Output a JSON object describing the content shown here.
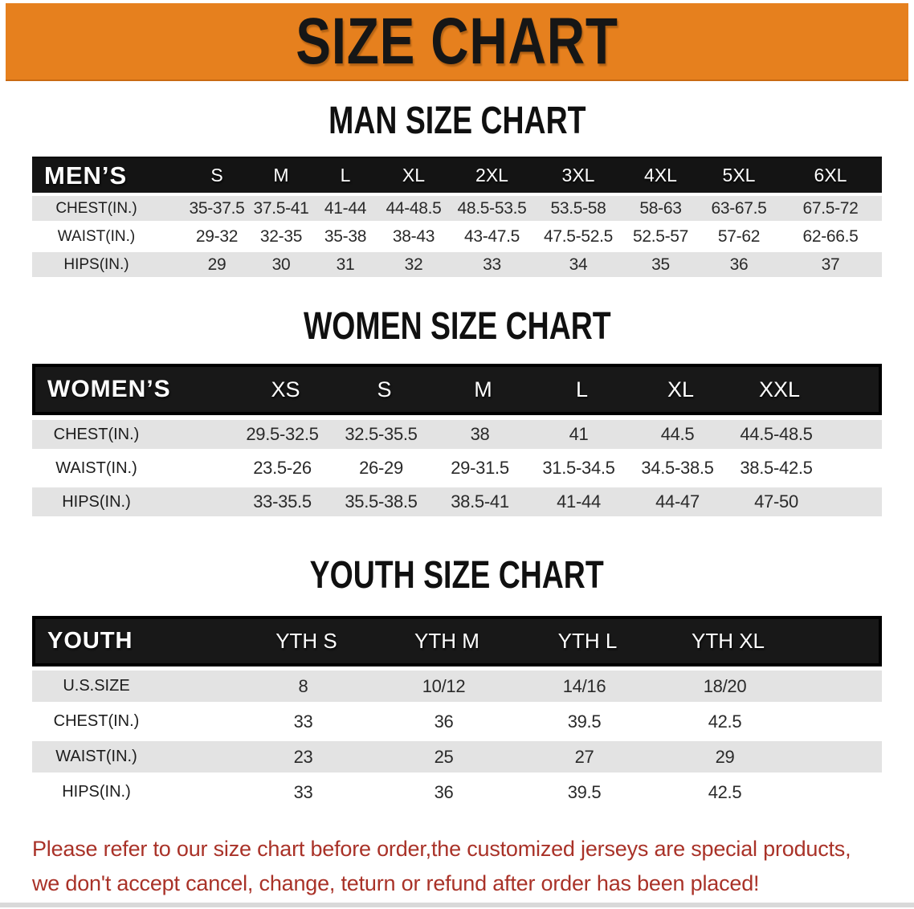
{
  "banner": {
    "title": "SIZE CHART"
  },
  "colors": {
    "banner_bg": "#E6801E",
    "table_header_bg": "#141414",
    "shaded_row_bg": "#E3E3E3",
    "footer_text": "#A93228"
  },
  "sections": [
    {
      "heading": "MAN SIZE CHART",
      "table": {
        "corner": "MEN’S",
        "columns": [
          "S",
          "M",
          "L",
          "XL",
          "2XL",
          "3XL",
          "4XL",
          "5XL",
          "6XL"
        ],
        "rows": [
          {
            "label": "CHEST(IN.)",
            "values": [
              "35-37.5",
              "37.5-41",
              "41-44",
              "44-48.5",
              "48.5-53.5",
              "53.5-58",
              "58-63",
              "63-67.5",
              "67.5-72"
            ]
          },
          {
            "label": "WAIST(IN.)",
            "values": [
              "29-32",
              "32-35",
              "35-38",
              "38-43",
              "43-47.5",
              "47.5-52.5",
              "52.5-57",
              "57-62",
              "62-66.5"
            ]
          },
          {
            "label": "HIPS(IN.)",
            "values": [
              "29",
              "30",
              "31",
              "32",
              "33",
              "34",
              "35",
              "36",
              "37"
            ]
          }
        ]
      }
    },
    {
      "heading": "WOMEN SIZE CHART",
      "table": {
        "corner": "WOMEN’S",
        "columns": [
          "XS",
          "S",
          "M",
          "L",
          "XL",
          "XXL"
        ],
        "rows": [
          {
            "label": "CHEST(IN.)",
            "values": [
              "29.5-32.5",
              "32.5-35.5",
              "38",
              "41",
              "44.5",
              "44.5-48.5"
            ]
          },
          {
            "label": "WAIST(IN.)",
            "values": [
              "23.5-26",
              "26-29",
              "29-31.5",
              "31.5-34.5",
              "34.5-38.5",
              "38.5-42.5"
            ]
          },
          {
            "label": "HIPS(IN.)",
            "values": [
              "33-35.5",
              "35.5-38.5",
              "38.5-41",
              "41-44",
              "44-47",
              "47-50"
            ]
          }
        ]
      }
    },
    {
      "heading": "YOUTH SIZE CHART",
      "table": {
        "corner": "YOUTH",
        "columns": [
          "YTH S",
          "YTH M",
          "YTH L",
          "YTH XL"
        ],
        "rows": [
          {
            "label": "U.S.SIZE",
            "values": [
              "8",
              "10/12",
              "14/16",
              "18/20"
            ]
          },
          {
            "label": "CHEST(IN.)",
            "values": [
              "33",
              "36",
              "39.5",
              "42.5"
            ]
          },
          {
            "label": "WAIST(IN.)",
            "values": [
              "23",
              "25",
              "27",
              "29"
            ]
          },
          {
            "label": "HIPS(IN.)",
            "values": [
              "33",
              "36",
              "39.5",
              "42.5"
            ]
          }
        ]
      }
    }
  ],
  "footer": {
    "line1": "Please refer to our size chart before order,the customized jerseys are special products,",
    "line2": "we don't accept cancel, change, teturn or refund after order has been placed!"
  }
}
